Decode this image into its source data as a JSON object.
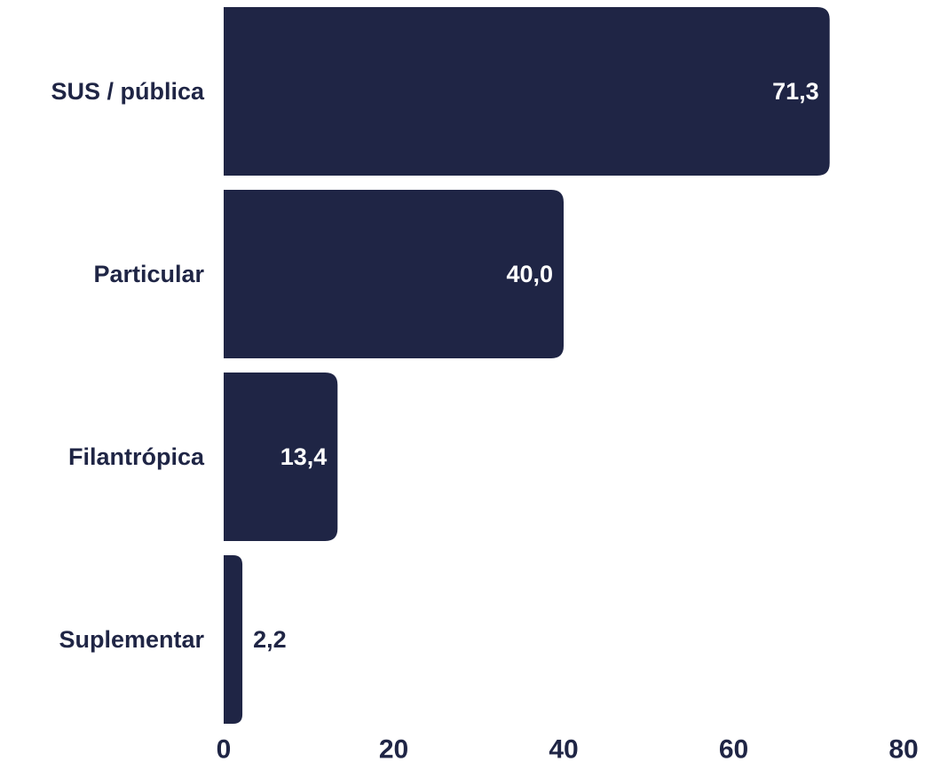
{
  "chart_data": {
    "type": "bar",
    "orientation": "horizontal",
    "categories": [
      "SUS / pública",
      "Particular",
      "Filantrópica",
      "Suplementar"
    ],
    "values": [
      71.3,
      40.0,
      13.4,
      2.2
    ],
    "value_labels": [
      "71,3",
      "40,0",
      "13,4",
      "2,2"
    ],
    "xlim": [
      0,
      80
    ],
    "x_ticks": [
      0,
      20,
      40,
      60,
      80
    ],
    "x_tick_labels": [
      "0",
      "20",
      "40",
      "60",
      "80"
    ],
    "grid": false,
    "legend": "none",
    "colors": {
      "bar": "#1f2545",
      "label_inside": "#ffffff",
      "label_outside": "#1f2545",
      "text": "#1f2545"
    }
  }
}
